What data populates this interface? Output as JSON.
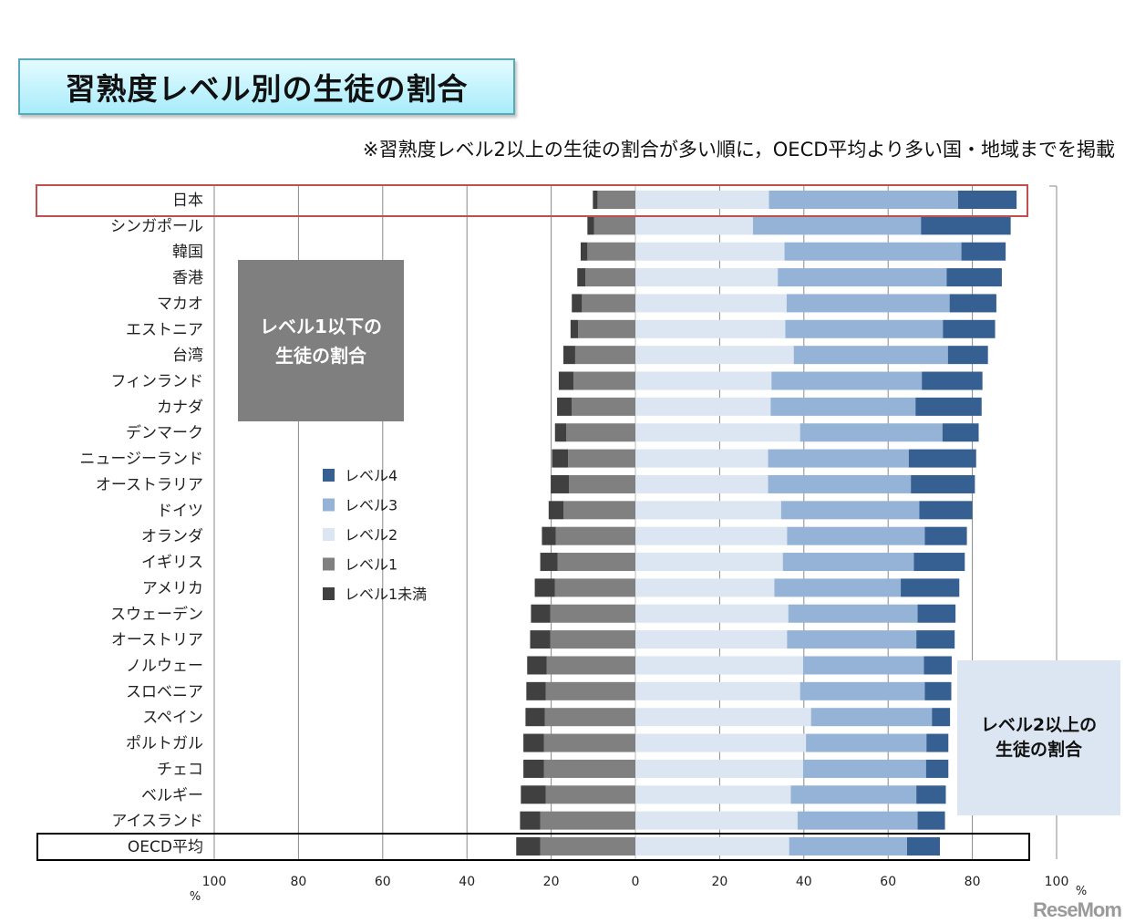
{
  "title": "習熟度レベル別の生徒の割合",
  "subtitle": "※習熟度レベル2以上の生徒の割合が多い順に，OECD平均より多い国・地域までを掲載",
  "left_box": [
    "レベル1以下の",
    "生徒の割合"
  ],
  "right_box": [
    "レベル2以上の",
    "生徒の割合"
  ],
  "logo": "ReseMom",
  "highlight_colors": {
    "japan_box": "#c0504d",
    "oecd_box": "#000000"
  },
  "chart_data": {
    "type": "bar",
    "orientation": "horizontal-diverging-stacked",
    "unit_label": "%",
    "xlim": [
      -100,
      100
    ],
    "x_ticks": [
      "100",
      "80",
      "60",
      "40",
      "20",
      "0",
      "20",
      "40",
      "60",
      "80",
      "100"
    ],
    "grid": true,
    "legend_position": "left-center",
    "categories": [
      "日本",
      "シンガポール",
      "韓国",
      "香港",
      "マカオ",
      "エストニア",
      "台湾",
      "フィンランド",
      "カナダ",
      "デンマーク",
      "ニュージーランド",
      "オーストラリア",
      "ドイツ",
      "オランダ",
      "イギリス",
      "アメリカ",
      "スウェーデン",
      "オーストリア",
      "ノルウェー",
      "スロベニア",
      "スペイン",
      "ポルトガル",
      "チェコ",
      "ベルギー",
      "アイスランド",
      "OECD平均"
    ],
    "series": [
      {
        "name": "レベル4",
        "color": "#376092",
        "side": "right",
        "values": [
          13.9,
          21.3,
          10.5,
          13.1,
          11.1,
          12.4,
          9.5,
          14.4,
          15.7,
          8.6,
          16.0,
          15.2,
          12.6,
          10.0,
          12.1,
          13.9,
          9.0,
          9.1,
          6.6,
          6.3,
          4.3,
          5.2,
          5.3,
          7.0,
          6.5,
          7.8
        ]
      },
      {
        "name": "レベル3",
        "color": "#95b3d7",
        "side": "right",
        "values": [
          44.9,
          39.9,
          42.0,
          40.1,
          38.7,
          37.4,
          36.6,
          35.7,
          34.4,
          33.8,
          33.4,
          33.9,
          32.8,
          32.7,
          31.1,
          30.0,
          30.7,
          30.7,
          28.7,
          29.6,
          28.7,
          28.6,
          29.2,
          29.8,
          28.5,
          28.0
        ]
      },
      {
        "name": "レベル2",
        "color": "#dce6f2",
        "side": "right",
        "values": [
          31.7,
          27.9,
          35.4,
          33.8,
          35.9,
          35.6,
          37.6,
          32.3,
          32.1,
          39.1,
          31.5,
          31.5,
          34.6,
          36.0,
          35.0,
          33.0,
          36.3,
          36.0,
          39.8,
          39.1,
          41.7,
          40.5,
          39.8,
          36.9,
          38.5,
          36.5
        ]
      },
      {
        "name": "レベル1",
        "color": "#808080",
        "side": "left",
        "values": [
          9.0,
          9.8,
          11.4,
          11.9,
          12.7,
          13.6,
          14.3,
          14.7,
          15.1,
          16.4,
          16.0,
          15.8,
          17.1,
          18.9,
          18.5,
          19.1,
          20.2,
          20.2,
          21.1,
          21.3,
          21.5,
          21.7,
          21.7,
          21.3,
          22.6,
          22.6
        ]
      },
      {
        "name": "レベル1未満",
        "color": "#404040",
        "side": "left",
        "values": [
          1.1,
          1.6,
          1.6,
          1.9,
          2.4,
          1.8,
          2.8,
          3.5,
          3.5,
          2.7,
          3.8,
          4.3,
          3.5,
          3.3,
          4.1,
          4.8,
          4.6,
          4.8,
          4.6,
          4.6,
          4.6,
          4.9,
          4.9,
          5.9,
          4.8,
          5.7
        ]
      }
    ]
  }
}
